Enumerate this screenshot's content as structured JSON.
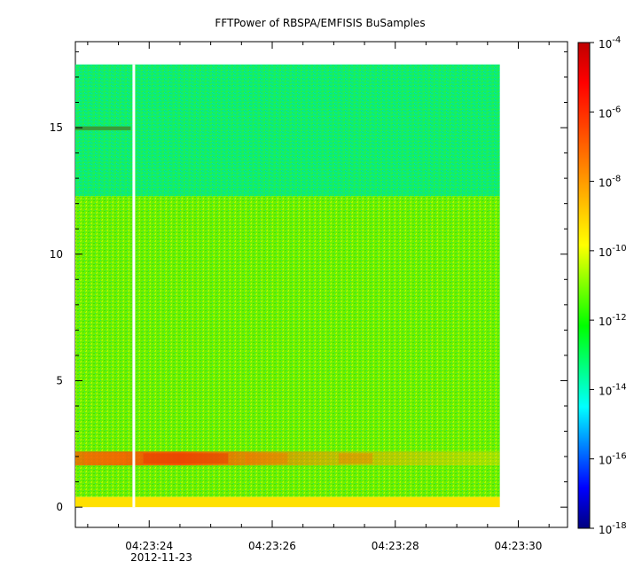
{
  "title": "FFTPower of RBSPA/EMFISIS  BuSamples",
  "chart_data": {
    "type": "heatmap",
    "title": "FFTPower of RBSPA/EMFISIS  BuSamples",
    "xlabel": "",
    "ylabel": "",
    "date_label": "2012-11-23",
    "x_range": [
      "04:23:22.8",
      "04:23:30.8"
    ],
    "x_ticks": [
      "04:23:24",
      "04:23:26",
      "04:23:28",
      "04:23:30"
    ],
    "x_minor_step_s": 0.5,
    "y_range": [
      -0.8,
      18.4
    ],
    "y_ticks": [
      0,
      5,
      10,
      15
    ],
    "data_extent": {
      "x": [
        "04:23:22.8",
        "04:23:29.7"
      ],
      "y": [
        0,
        17.5
      ]
    },
    "gap": {
      "x": "04:23:23.75"
    },
    "colorbar": {
      "scale": "log",
      "range": [
        1e-18,
        0.0001
      ],
      "ticks": [
        {
          "value": 0.0001,
          "mantissa": "10",
          "exponent": "-4"
        },
        {
          "value": 1e-06,
          "mantissa": "10",
          "exponent": "-6"
        },
        {
          "value": 1e-08,
          "mantissa": "10",
          "exponent": "-8"
        },
        {
          "value": 1e-10,
          "mantissa": "10",
          "exponent": "-10"
        },
        {
          "value": 1e-12,
          "mantissa": "10",
          "exponent": "-12"
        },
        {
          "value": 1e-14,
          "mantissa": "10",
          "exponent": "-14"
        },
        {
          "value": 1e-16,
          "mantissa": "10",
          "exponent": "-16"
        },
        {
          "value": 1e-18,
          "mantissa": "10",
          "exponent": "-18"
        }
      ],
      "colors": [
        "#00007f",
        "#0000ff",
        "#007fff",
        "#00ffff",
        "#00ff7f",
        "#00ff00",
        "#7fff00",
        "#ffff00",
        "#ffbf00",
        "#ff7f00",
        "#ff3f00",
        "#ff0000",
        "#bf0000"
      ]
    },
    "bands": [
      {
        "y": [
          12.3,
          17.5
        ],
        "level": "1e-12"
      },
      {
        "y": [
          0.4,
          12.3
        ],
        "level": "1e-10"
      },
      {
        "y": [
          1.65,
          2.2
        ],
        "level": "1e-7",
        "note": "strongest near 04:23:24-04:23:26"
      },
      {
        "y": [
          0,
          0.4
        ],
        "level": "1e-8"
      },
      {
        "y": [
          14.9,
          15.05
        ],
        "level": "1e-11",
        "x": [
          "04:23:22.8",
          "04:23:23.7"
        ]
      }
    ]
  }
}
